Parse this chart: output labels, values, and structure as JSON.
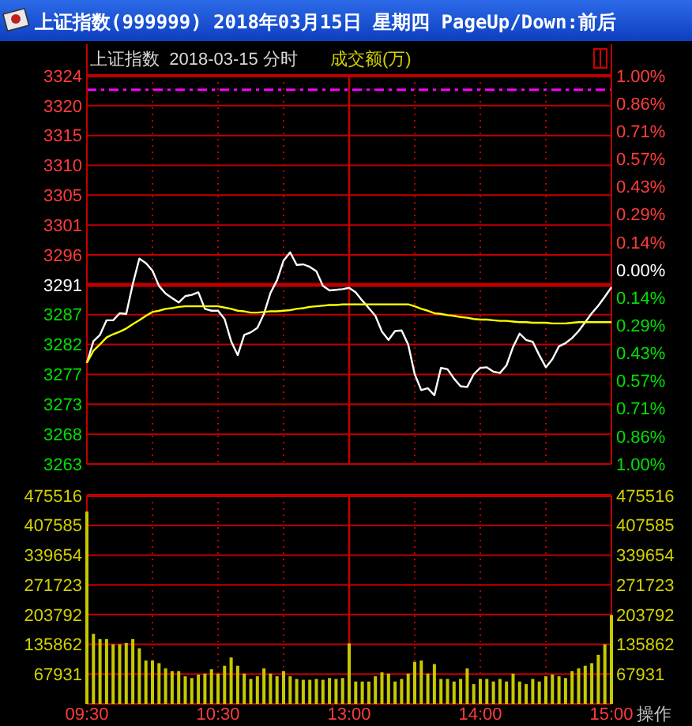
{
  "chart_data": [
    {
      "type": "line",
      "title": "上证指数(999999) 2018年03月15日 星期四 PageUp/Down:前后",
      "subtitle": "上证指数  2018-03-15 分时",
      "annotations": [
        "成交额(万)"
      ],
      "categories": [
        "09:30",
        null,
        null,
        null,
        null,
        null,
        null,
        null,
        null,
        null,
        null,
        null,
        null,
        null,
        null,
        null,
        null,
        null,
        null,
        null,
        "10:30",
        null,
        null,
        null,
        null,
        null,
        null,
        null,
        null,
        null,
        null,
        null,
        null,
        null,
        null,
        null,
        null,
        null,
        null,
        null,
        "13:00",
        null,
        null,
        null,
        null,
        null,
        null,
        null,
        null,
        null,
        null,
        null,
        null,
        null,
        null,
        null,
        null,
        null,
        null,
        null,
        "14:00",
        null,
        null,
        null,
        null,
        null,
        null,
        null,
        null,
        null,
        null,
        null,
        null,
        null,
        null,
        null,
        null,
        null,
        null,
        null,
        "15:00"
      ],
      "ylim": [
        3263.17,
        3324.29
      ],
      "yticks": [
        {
          "value": 3324.29,
          "label": "3324"
        },
        {
          "value": 3319.59,
          "label": "3320"
        },
        {
          "value": 3314.89,
          "label": "3315"
        },
        {
          "value": 3310.19,
          "label": "3310"
        },
        {
          "value": 3305.49,
          "label": "3305"
        },
        {
          "value": 3300.78,
          "label": "3301"
        },
        {
          "value": 3296.08,
          "label": "3296"
        },
        {
          "value": 3291.38,
          "label": "3291"
        },
        {
          "value": 3286.68,
          "label": "3287"
        },
        {
          "value": 3281.98,
          "label": "3282"
        },
        {
          "value": 3277.28,
          "label": "3277"
        },
        {
          "value": 3272.57,
          "label": "3273"
        },
        {
          "value": 3267.87,
          "label": "3268"
        },
        {
          "value": 3263.17,
          "label": "3263"
        }
      ],
      "y2lim": [
        -1,
        1
      ],
      "y2ticks": [
        {
          "value": 1,
          "label": "1.00%"
        },
        {
          "value": 0.857,
          "label": "0.86%"
        },
        {
          "value": 0.714,
          "label": "0.71%"
        },
        {
          "value": 0.571,
          "label": "0.57%"
        },
        {
          "value": 0.429,
          "label": "0.43%"
        },
        {
          "value": 0.286,
          "label": "0.29%"
        },
        {
          "value": 0.143,
          "label": "0.14%"
        },
        {
          "value": 0,
          "label": "0.00%"
        },
        {
          "value": -0.143,
          "label": "0.14%"
        },
        {
          "value": -0.286,
          "label": "0.29%"
        },
        {
          "value": -0.429,
          "label": "0.43%"
        },
        {
          "value": -0.571,
          "label": "0.57%"
        },
        {
          "value": -0.714,
          "label": "0.71%"
        },
        {
          "value": -0.857,
          "label": "0.86%"
        },
        {
          "value": -1,
          "label": "1.00%"
        }
      ],
      "tick_labels": "y",
      "grid": true,
      "line_style": "solid",
      "ref_lines": [
        {
          "axis": "y",
          "value": 3291.38,
          "color": "#c00000"
        },
        {
          "axis": "y",
          "value": 3322.1,
          "color": "#ff00ff",
          "line_style": "dashed"
        },
        {
          "axis": "x",
          "value": "13:00",
          "color": "#c00000"
        }
      ],
      "series": [
        {
          "color": "#ffffff",
          "values": [
            3279.1,
            3282.5,
            3283.5,
            3285.8,
            3285.8,
            3286.9,
            3286.8,
            3291.5,
            3295.5,
            3294.8,
            3293.6,
            3291.2,
            3290.0,
            3289.3,
            3288.6,
            3289.6,
            3289.8,
            3290.2,
            3287.6,
            3287.3,
            3287.3,
            3286.0,
            3282.5,
            3280.3,
            3283.5,
            3283.9,
            3284.6,
            3286.8,
            3290.1,
            3292.1,
            3295.2,
            3296.5,
            3294.5,
            3294.6,
            3294.2,
            3293.5,
            3291.2,
            3290.5,
            3290.6,
            3290.7,
            3290.9,
            3290.2,
            3288.9,
            3287.7,
            3286.5,
            3284.0,
            3282.7,
            3284.1,
            3284.2,
            3282.0,
            3277.3,
            3274.8,
            3275.1,
            3274.0,
            3278.3,
            3278.1,
            3276.6,
            3275.4,
            3275.3,
            3277.3,
            3278.3,
            3278.4,
            3277.7,
            3277.5,
            3278.7,
            3281.6,
            3283.7,
            3282.7,
            3282.4,
            3280.3,
            3278.4,
            3279.7,
            3281.7,
            3282.2,
            3283.0,
            3284.1,
            3285.5,
            3286.9,
            3288.1,
            3289.5,
            3291.0
          ]
        },
        {
          "color": "#ffff00",
          "values": [
            3279.1,
            3281.0,
            3282.0,
            3283.1,
            3283.6,
            3284.0,
            3284.5,
            3285.2,
            3285.8,
            3286.5,
            3287.1,
            3287.3,
            3287.6,
            3287.7,
            3287.9,
            3288.0,
            3288.0,
            3288.0,
            3288.0,
            3288.0,
            3288.0,
            3287.8,
            3287.6,
            3287.3,
            3287.2,
            3287.0,
            3287.0,
            3287.1,
            3287.2,
            3287.2,
            3287.3,
            3287.4,
            3287.6,
            3287.7,
            3287.9,
            3288.0,
            3288.1,
            3288.2,
            3288.2,
            3288.3,
            3288.3,
            3288.3,
            3288.3,
            3288.3,
            3288.3,
            3288.3,
            3288.3,
            3288.3,
            3288.3,
            3288.3,
            3288.0,
            3287.6,
            3287.3,
            3286.9,
            3286.8,
            3286.6,
            3286.5,
            3286.3,
            3286.2,
            3286.0,
            3285.9,
            3285.9,
            3285.8,
            3285.7,
            3285.7,
            3285.6,
            3285.5,
            3285.5,
            3285.4,
            3285.4,
            3285.4,
            3285.3,
            3285.3,
            3285.3,
            3285.4,
            3285.5,
            3285.5,
            3285.5,
            3285.5,
            3285.5,
            3285.5
          ]
        }
      ]
    },
    {
      "type": "bar",
      "annotations": [
        "操作"
      ],
      "color": "#c8c800",
      "categories": [
        "09:30",
        null,
        null,
        null,
        null,
        null,
        null,
        null,
        null,
        null,
        null,
        null,
        null,
        null,
        null,
        null,
        null,
        null,
        null,
        null,
        "10:30",
        null,
        null,
        null,
        null,
        null,
        null,
        null,
        null,
        null,
        null,
        null,
        null,
        null,
        null,
        null,
        null,
        null,
        null,
        null,
        "13:00",
        null,
        null,
        null,
        null,
        null,
        null,
        null,
        null,
        null,
        null,
        null,
        null,
        null,
        null,
        null,
        null,
        null,
        null,
        null,
        "14:00",
        null,
        null,
        null,
        null,
        null,
        null,
        null,
        null,
        null,
        null,
        null,
        null,
        null,
        null,
        null,
        null,
        null,
        null,
        null,
        "15:00"
      ],
      "values": [
        439000,
        160000,
        148000,
        148000,
        136000,
        136000,
        139000,
        148000,
        127000,
        99000,
        99000,
        93000,
        81000,
        75000,
        75000,
        63000,
        59000,
        67000,
        69000,
        79000,
        69000,
        87000,
        106000,
        87000,
        69000,
        57000,
        63000,
        81000,
        69000,
        63000,
        75000,
        63000,
        57000,
        55000,
        55000,
        57000,
        55000,
        59000,
        57000,
        59000,
        138000,
        51000,
        51000,
        51000,
        63000,
        72000,
        69000,
        51000,
        57000,
        69000,
        96000,
        99000,
        69000,
        91000,
        57000,
        57000,
        51000,
        57000,
        81000,
        45000,
        57000,
        57000,
        51000,
        57000,
        51000,
        69000,
        51000,
        45000,
        57000,
        51000,
        63000,
        67000,
        63000,
        59000,
        75000,
        81000,
        87000,
        93000,
        112000,
        136000,
        203000
      ],
      "ylim": [
        0,
        475516
      ],
      "yticks": [
        67931,
        135862,
        203792,
        271723,
        339654,
        407585,
        475516
      ],
      "y2lim": [
        0,
        475516
      ],
      "y2ticks": [
        67931,
        135862,
        203792,
        271723,
        339654,
        407585,
        475516
      ],
      "grid": true,
      "ref_lines": [
        {
          "axis": "x",
          "value": "13:00",
          "color": "#c00000"
        }
      ]
    }
  ]
}
